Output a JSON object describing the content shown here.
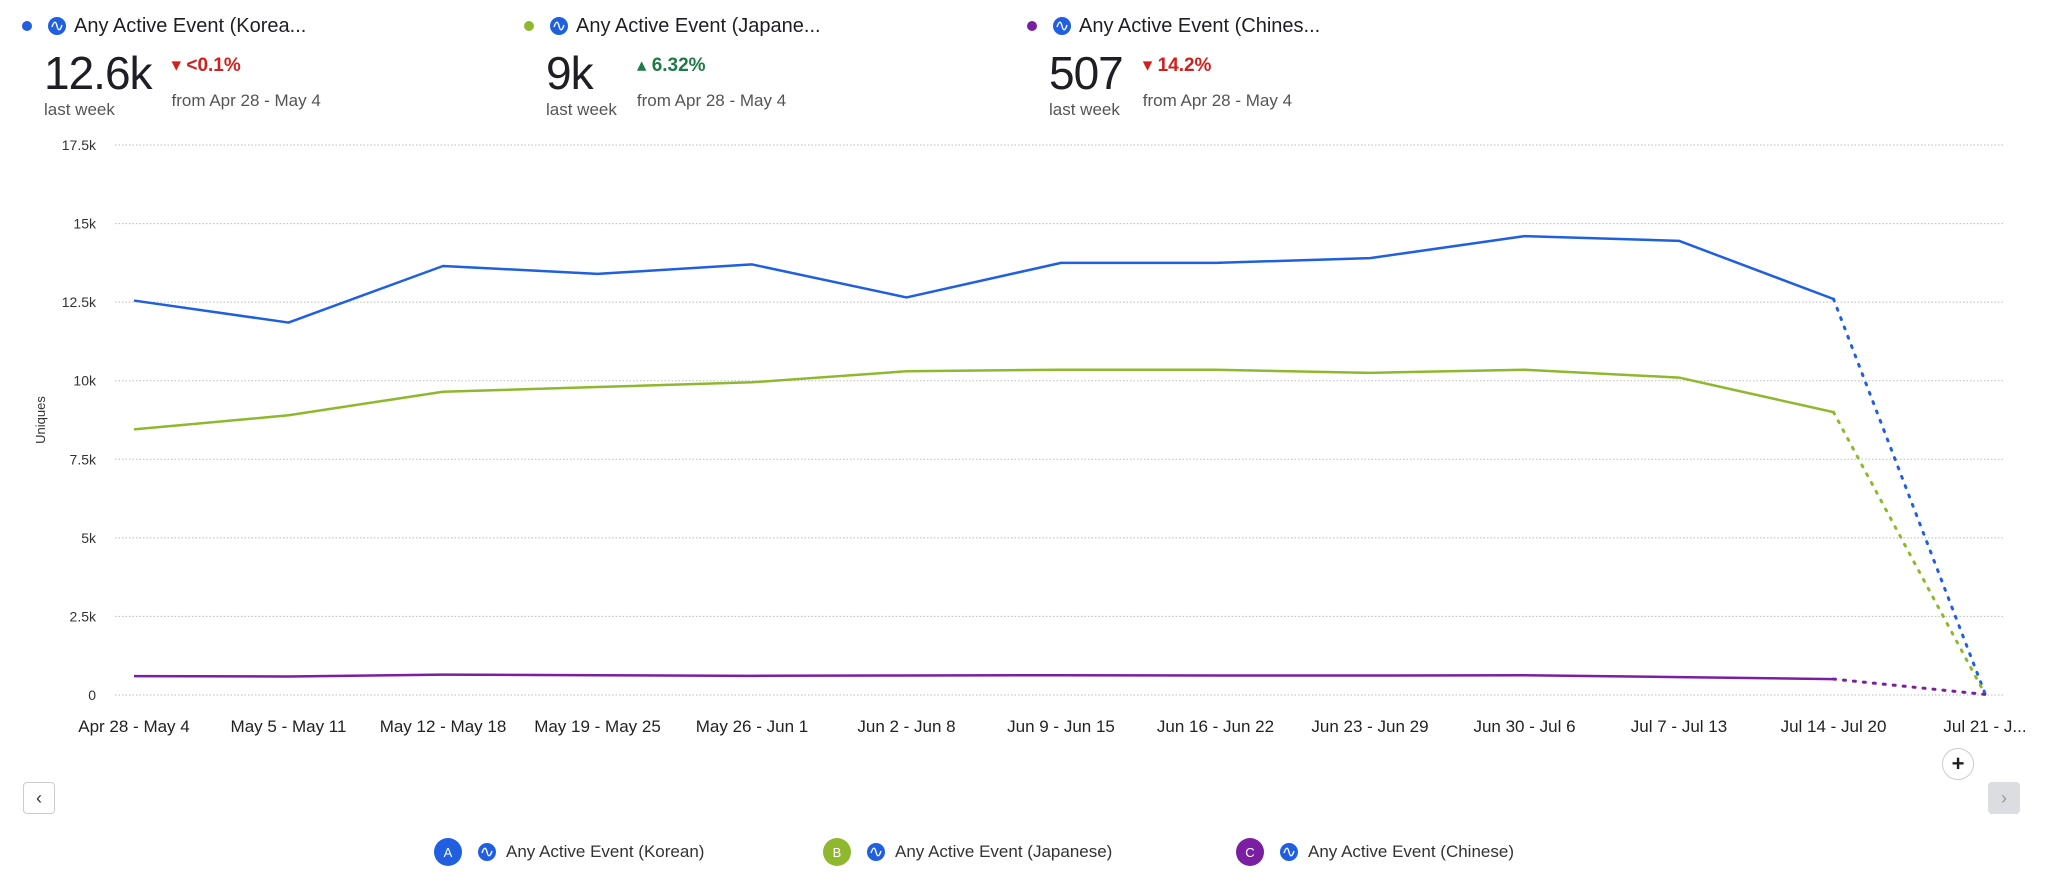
{
  "colors": {
    "A": "#1f5fe0",
    "B": "#8fb82e",
    "C": "#7b1fa2",
    "up": "#1e7a46",
    "down": "#d0211c"
  },
  "metrics": [
    {
      "title": "Any Active Event (Korea...",
      "value": "12.6k",
      "value_label": "last week",
      "change": "<0.1%",
      "direction": "down",
      "change_label": "from Apr 28 - May 4"
    },
    {
      "title": "Any Active Event (Japane...",
      "value": "9k",
      "value_label": "last week",
      "change": "6.32%",
      "direction": "up",
      "change_label": "from Apr 28 - May 4"
    },
    {
      "title": "Any Active Event (Chines...",
      "value": "507",
      "value_label": "last week",
      "change": "14.2%",
      "direction": "down",
      "change_label": "from Apr 28 - May 4"
    }
  ],
  "chart_data": {
    "type": "line",
    "ylabel": "Uniques",
    "ylim": [
      0,
      17500
    ],
    "yticks": [
      "0",
      "2.5k",
      "5k",
      "7.5k",
      "10k",
      "12.5k",
      "15k",
      "17.5k"
    ],
    "categories": [
      "Apr 28 - May 4",
      "May 5 - May 11",
      "May 12 - May 18",
      "May 19 - May 25",
      "May 26 - Jun 1",
      "Jun 2 - Jun 8",
      "Jun 9 - Jun 15",
      "Jun 16 - Jun 22",
      "Jun 23 - Jun 29",
      "Jun 30 - Jul 6",
      "Jul 7 - Jul 13",
      "Jul 14 - Jul 20",
      "Jul 21 - J..."
    ],
    "incomplete_from_index": 11,
    "series": [
      {
        "key": "A",
        "name": "Any Active Event (Korean)",
        "values": [
          12550,
          11850,
          13650,
          13400,
          13700,
          12650,
          13750,
          13750,
          13900,
          14600,
          14450,
          12600,
          50
        ]
      },
      {
        "key": "B",
        "name": "Any Active Event (Japanese)",
        "values": [
          8450,
          8900,
          9650,
          9800,
          9950,
          10300,
          10350,
          10350,
          10250,
          10350,
          10100,
          9000,
          30
        ]
      },
      {
        "key": "C",
        "name": "Any Active Event (Chinese)",
        "values": [
          600,
          590,
          650,
          630,
          610,
          620,
          630,
          620,
          620,
          630,
          570,
          507,
          20
        ]
      }
    ]
  },
  "controls": {
    "add": "+",
    "prev": "‹",
    "next": "›"
  },
  "legend": [
    {
      "badge": "A",
      "label": "Any Active Event (Korean)"
    },
    {
      "badge": "B",
      "label": "Any Active Event (Japanese)"
    },
    {
      "badge": "C",
      "label": "Any Active Event (Chinese)"
    }
  ]
}
